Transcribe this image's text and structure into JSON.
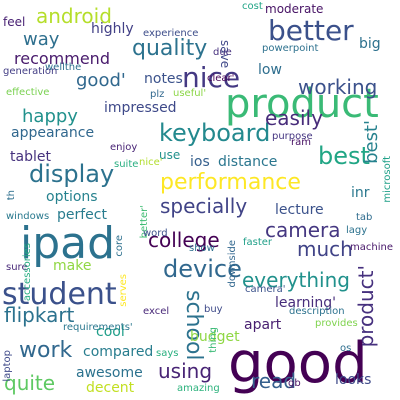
{
  "words": [
    {
      "text": "good",
      "color": "#440154"
    },
    {
      "text": "product",
      "color": "#3aba76"
    },
    {
      "text": "ipad",
      "color": "#2c728e"
    },
    {
      "text": "nice",
      "color": "#443983"
    },
    {
      "text": "better",
      "color": "#3b518b"
    },
    {
      "text": "student",
      "color": "#3b518b"
    },
    {
      "text": "keyboard",
      "color": "#23898e"
    },
    {
      "text": "quality",
      "color": "#2c728e"
    },
    {
      "text": "display",
      "color": "#2c728e"
    },
    {
      "text": "performance",
      "color": "#fde725"
    },
    {
      "text": "device",
      "color": "#31688e"
    },
    {
      "text": "android",
      "color": "#b5de2b"
    },
    {
      "text": "working",
      "color": "#3b518b"
    },
    {
      "text": "camera",
      "color": "#453781"
    },
    {
      "text": "best",
      "color": "#21a685"
    },
    {
      "text": "easily",
      "color": "#472c7a"
    },
    {
      "text": "specially",
      "color": "#414487"
    },
    {
      "text": "college",
      "color": "#440154"
    },
    {
      "text": "school",
      "color": "#2c728e"
    },
    {
      "text": "work",
      "color": "#31688e"
    },
    {
      "text": "flipkart",
      "color": "#2c728e"
    },
    {
      "text": "everything",
      "color": "#21918c"
    },
    {
      "text": "much",
      "color": "#404387"
    },
    {
      "text": "using",
      "color": "#482475"
    },
    {
      "text": "quite",
      "color": "#5ec962"
    },
    {
      "text": "read",
      "color": "#355f8d"
    },
    {
      "text": "happy",
      "color": "#21918c"
    },
    {
      "text": "way",
      "color": "#2e6f8e"
    },
    {
      "text": "recommend",
      "color": "#481a6c"
    },
    {
      "text": "good'",
      "color": "#31688e"
    },
    {
      "text": "highly",
      "color": "#424086"
    },
    {
      "text": "notes",
      "color": "#3b528b"
    },
    {
      "text": "impressed",
      "color": "#3e4989"
    },
    {
      "text": "appearance",
      "color": "#31688e"
    },
    {
      "text": "tablet",
      "color": "#46327e"
    },
    {
      "text": "options",
      "color": "#26828e"
    },
    {
      "text": "perfect",
      "color": "#287c8e"
    },
    {
      "text": "lecture",
      "color": "#3b528b"
    },
    {
      "text": "distance",
      "color": "#2a768e"
    },
    {
      "text": "ios",
      "color": "#355f8d"
    },
    {
      "text": "inr",
      "color": "#2a788e"
    },
    {
      "text": "product'",
      "color": "#46307e"
    },
    {
      "text": "best'",
      "color": "#26828e"
    },
    {
      "text": "learning'",
      "color": "#472d7b"
    },
    {
      "text": "budget",
      "color": "#8fd744"
    },
    {
      "text": "apart",
      "color": "#481f70"
    },
    {
      "text": "cool",
      "color": "#1f9e89"
    },
    {
      "text": "make",
      "color": "#90d743"
    },
    {
      "text": "compared",
      "color": "#287d8e"
    },
    {
      "text": "awesome",
      "color": "#2c728e"
    },
    {
      "text": "decent",
      "color": "#c2df23"
    },
    {
      "text": "looks",
      "color": "#3e4a89"
    },
    {
      "text": "moderate",
      "color": "#471365"
    },
    {
      "text": "big",
      "color": "#2d718e"
    },
    {
      "text": "low",
      "color": "#2e6e8e"
    },
    {
      "text": "save",
      "color": "#3f4889"
    },
    {
      "text": "feel",
      "color": "#482173"
    },
    {
      "text": "cost",
      "color": "#20a486"
    },
    {
      "text": "experience",
      "color": "#3d4d8a"
    },
    {
      "text": "wellthe",
      "color": "#2d708e"
    },
    {
      "text": "generation",
      "color": "#433e85"
    },
    {
      "text": "effective",
      "color": "#7ad151"
    },
    {
      "text": "plz",
      "color": "#31688e"
    },
    {
      "text": "useful'",
      "color": "#8bd646"
    },
    {
      "text": "clear'",
      "color": "#440154"
    },
    {
      "text": "due",
      "color": "#46307e"
    },
    {
      "text": "powerpoint",
      "color": "#2d718e"
    },
    {
      "text": "enjoy",
      "color": "#482475"
    },
    {
      "text": "use",
      "color": "#21918c"
    },
    {
      "text": "purpose",
      "color": "#453581"
    },
    {
      "text": "ram",
      "color": "#471063"
    },
    {
      "text": "microsoft",
      "color": "#1fa088"
    },
    {
      "text": "nice'",
      "color": "#b2dd2d"
    },
    {
      "text": "suite",
      "color": "#28ae80"
    },
    {
      "text": "th",
      "color": "#2e6f8e"
    },
    {
      "text": "windows",
      "color": "#29798e"
    },
    {
      "text": "better'",
      "color": "#3fbc73"
    },
    {
      "text": "core",
      "color": "#2d708e"
    },
    {
      "text": "word",
      "color": "#3b528b"
    },
    {
      "text": "show",
      "color": "#2e6f8e"
    },
    {
      "text": "faster",
      "color": "#1f9f88"
    },
    {
      "text": "tab",
      "color": "#2f6c8e"
    },
    {
      "text": "lagy",
      "color": "#2c728e"
    },
    {
      "text": "machine",
      "color": "#48186a"
    },
    {
      "text": "sure",
      "color": "#482979"
    },
    {
      "text": "accessories",
      "color": "#26ad81"
    },
    {
      "text": "serves",
      "color": "#fde725"
    },
    {
      "text": "thing",
      "color": "#3aba76"
    },
    {
      "text": "buy",
      "color": "#3e4a89"
    },
    {
      "text": "excel",
      "color": "#482878"
    },
    {
      "text": "downside",
      "color": "#31678e"
    },
    {
      "text": "camera'",
      "color": "#3b528b"
    },
    {
      "text": "description",
      "color": "#2c728e"
    },
    {
      "text": "provides",
      "color": "#7fd34e"
    },
    {
      "text": "requirements'",
      "color": "#2a778e"
    },
    {
      "text": "says",
      "color": "#29af7f"
    },
    {
      "text": "os",
      "color": "#2e6e8e"
    },
    {
      "text": "laptop",
      "color": "#3e4989"
    },
    {
      "text": "amazing",
      "color": "#2db27d"
    },
    {
      "text": "gb",
      "color": "#471063"
    }
  ]
}
